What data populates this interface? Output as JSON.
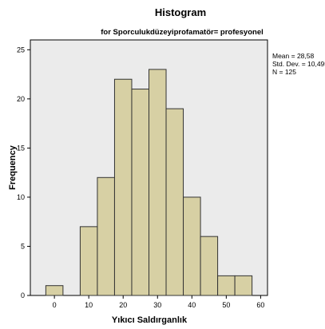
{
  "chart_data": {
    "type": "bar",
    "title": "Histogram",
    "subtitle": "for Sporculukdüzeyiprofamatör= profesyonel",
    "xlabel": "Yıkıcı Saldırganlık",
    "ylabel": "Frequency",
    "bin_width": 5,
    "bins": [
      {
        "start": -2.5,
        "end": 2.5,
        "count": 1
      },
      {
        "start": 2.5,
        "end": 7.5,
        "count": 0
      },
      {
        "start": 7.5,
        "end": 12.5,
        "count": 7
      },
      {
        "start": 12.5,
        "end": 17.5,
        "count": 12
      },
      {
        "start": 17.5,
        "end": 22.5,
        "count": 22
      },
      {
        "start": 22.5,
        "end": 27.5,
        "count": 21
      },
      {
        "start": 27.5,
        "end": 32.5,
        "count": 23
      },
      {
        "start": 32.5,
        "end": 37.5,
        "count": 19
      },
      {
        "start": 37.5,
        "end": 42.5,
        "count": 10
      },
      {
        "start": 42.5,
        "end": 47.5,
        "count": 6
      },
      {
        "start": 47.5,
        "end": 52.5,
        "count": 2
      },
      {
        "start": 52.5,
        "end": 57.5,
        "count": 2
      }
    ],
    "xlim": [
      -7,
      62
    ],
    "ylim": [
      0,
      26
    ],
    "xticks": [
      0,
      10,
      20,
      30,
      40,
      50,
      60
    ],
    "yticks": [
      0,
      5,
      10,
      15,
      20,
      25
    ],
    "grid": false,
    "legend": "none",
    "stats": {
      "mean": "Mean = 28,58",
      "std_dev": "Std. Dev. = 10,495",
      "n": "N = 125"
    },
    "colors": {
      "bar_fill": "#d7d0a4",
      "bar_stroke": "#333333",
      "plot_background": "#ebebeb",
      "page_background": "#ffffff"
    }
  }
}
